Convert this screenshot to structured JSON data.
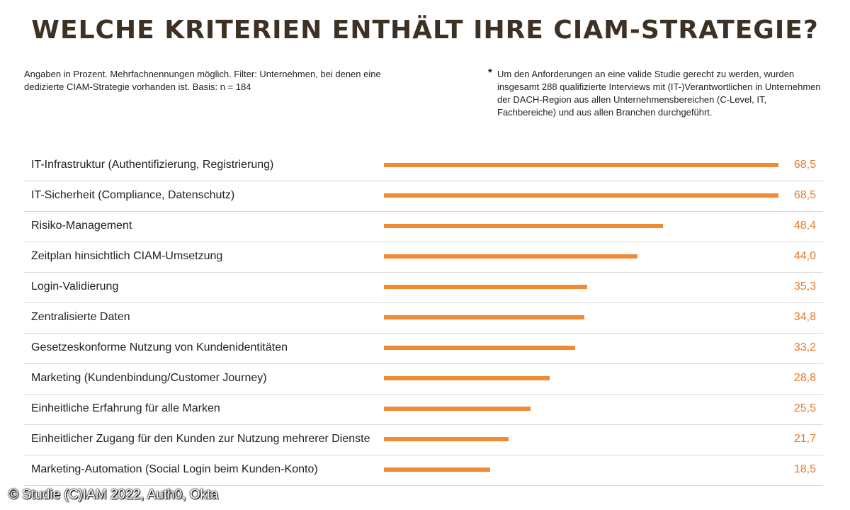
{
  "header": {
    "title": "WELCHE KRITERIEN ENTHÄLT IHRE CIAM-STRATEGIE?"
  },
  "notes": {
    "left": "Angaben in Prozent. Mehrfachnennungen möglich. Filter: Unternehmen, bei denen eine dedizierte CIAM-Strategie vorhanden ist. Basis: n = 184",
    "asterisk": "*",
    "right": "Um den Anforderungen an eine valide Studie gerecht zu werden, wurden insgesamt 288 qualifizierte Interviews mit (IT-)Verantwortlichen in Unternehmen der DACH-Region aus allen Unternehmensbereichen (C-Level, IT, Fachbereiche) und aus allen Branchen durchgeführt."
  },
  "chart_data": {
    "type": "bar",
    "orientation": "horizontal",
    "bar_color": "#f08a34",
    "value_color": "#e8782a",
    "categories": [
      "IT-Infrastruktur (Authentifizierung, Registrierung)",
      "IT-Sicherheit (Compliance, Datenschutz)",
      "Risiko-Management",
      "Zeitplan hinsichtlich CIAM-Umsetzung",
      "Login-Validierung",
      "Zentralisierte Daten",
      "Gesetzeskonforme Nutzung von Kundenidentitäten",
      "Marketing (Kundenbindung/Customer Journey)",
      "Einheitliche Erfahrung für alle Marken",
      "Einheitlicher Zugang für den Kunden zur Nutzung mehrerer Dienste",
      "Marketing-Automation (Social Login beim Kunden-Konto)"
    ],
    "values": [
      68.5,
      68.5,
      48.4,
      44.0,
      35.3,
      34.8,
      33.2,
      28.8,
      25.5,
      21.7,
      18.5
    ],
    "value_labels": [
      "68,5",
      "68,5",
      "48,4",
      "44,0",
      "35,3",
      "34,8",
      "33,2",
      "28,8",
      "25,5",
      "21,7",
      "18,5"
    ],
    "xlim": [
      0,
      68.5
    ]
  },
  "footer": {
    "source": "© Studie (C)IAM 2022, Auth0, Okta"
  }
}
